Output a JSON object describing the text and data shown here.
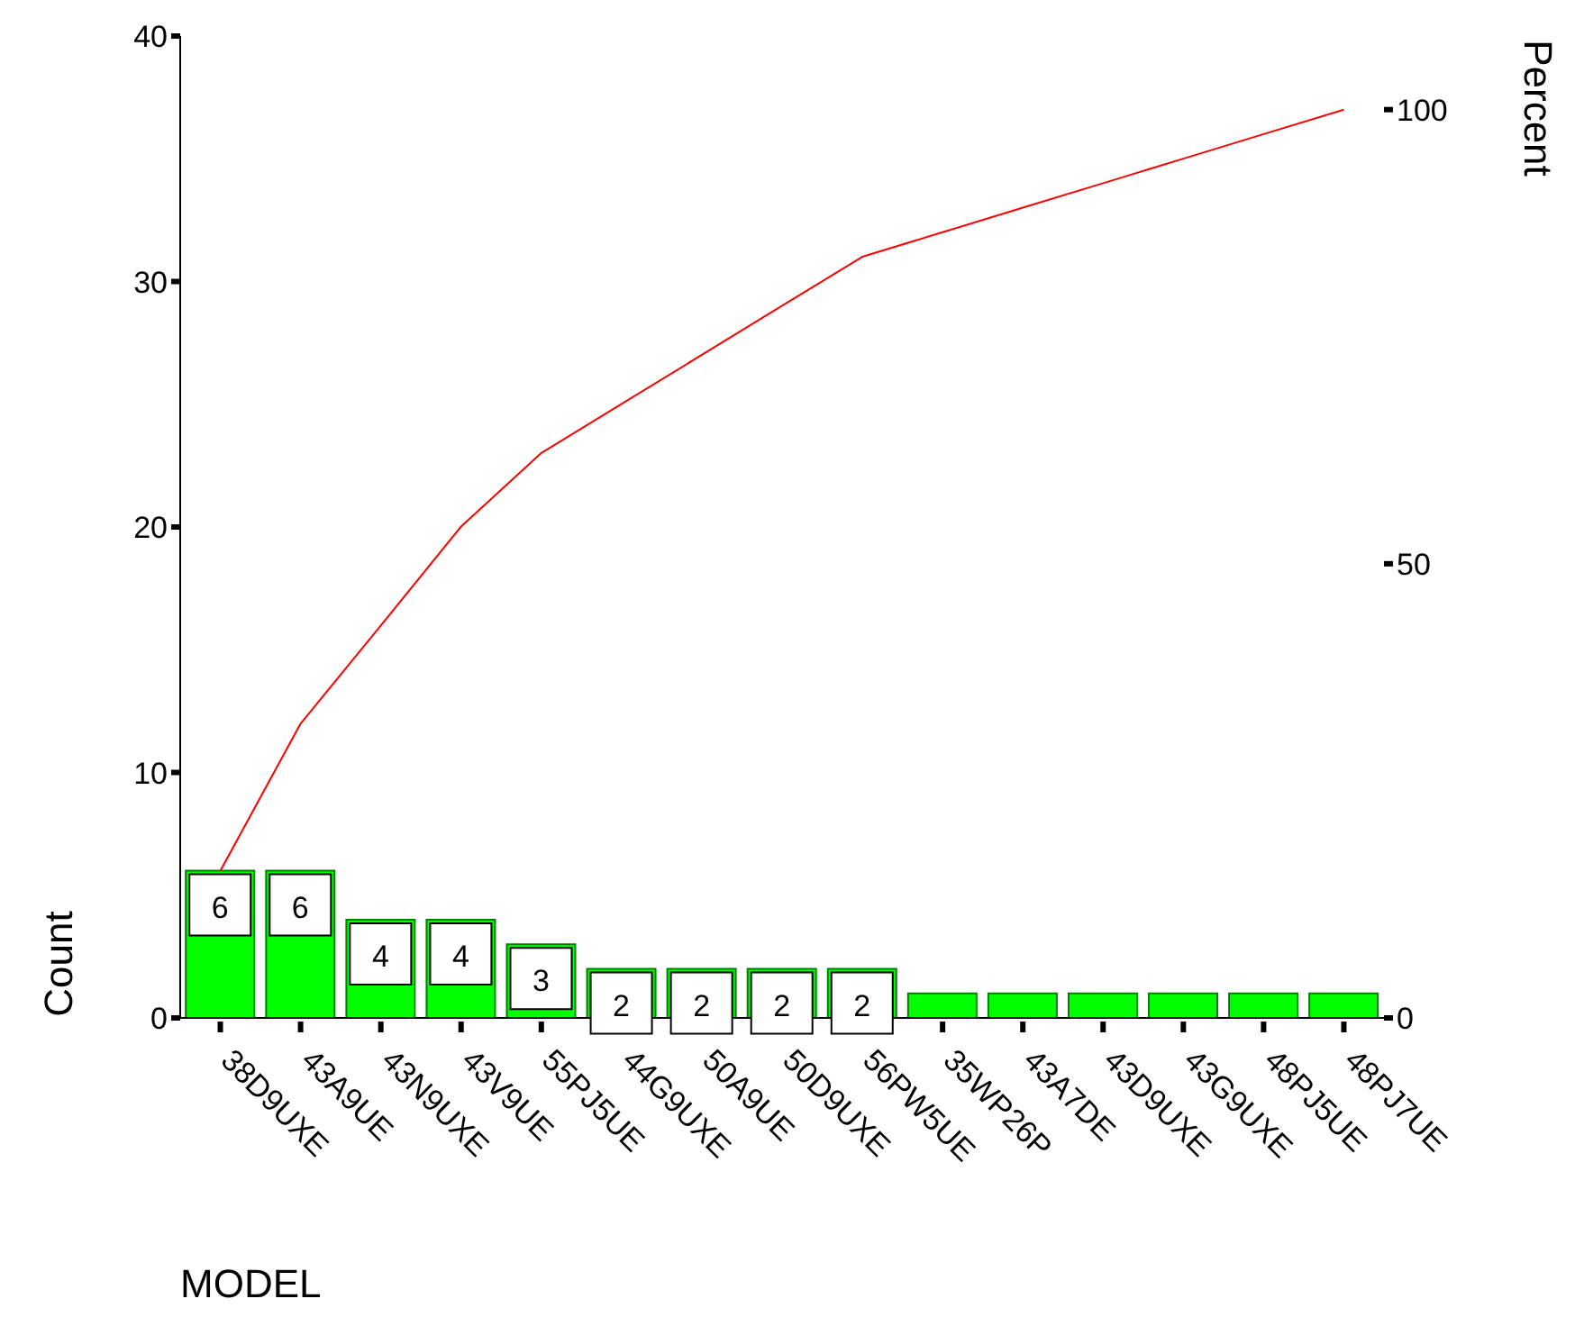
{
  "chart_data": {
    "type": "bar",
    "xlabel": "MODEL",
    "ylabel": "Count",
    "y2label": "Percent",
    "categories": [
      "38D9UXE",
      "43A9UE",
      "43N9UXE",
      "43V9UE",
      "55PJ5UE",
      "44G9UXE",
      "50A9UE",
      "50D9UXE",
      "56PW5UE",
      "35WP26P",
      "43A7DE",
      "43D9UXE",
      "43G9UXE",
      "48PJ5UE",
      "48PJ7UE"
    ],
    "series": [
      {
        "color": "#00ff00",
        "values": [
          6,
          6,
          4,
          4,
          3,
          2,
          2,
          2,
          2,
          1,
          1,
          1,
          1,
          1,
          1
        ],
        "value_labels": [
          "6",
          "6",
          "4",
          "4",
          "3",
          "2",
          "2",
          "2",
          "2",
          null,
          null,
          null,
          null,
          null,
          null
        ]
      },
      {
        "type": "line",
        "axis": "y2",
        "color": "#ff0000",
        "values": [
          16.2,
          32.4,
          43.2,
          54.1,
          62.2,
          67.6,
          73.0,
          78.4,
          83.8,
          86.5,
          89.2,
          91.9,
          94.6,
          97.3,
          100
        ]
      }
    ],
    "ylim": [
      0,
      40
    ],
    "yticks": [
      0,
      10,
      20,
      30,
      40
    ],
    "y2lim": [
      0,
      108.1
    ],
    "y2ticks": [
      0,
      50,
      100
    ],
    "marker": "none",
    "line_style": "solid"
  }
}
